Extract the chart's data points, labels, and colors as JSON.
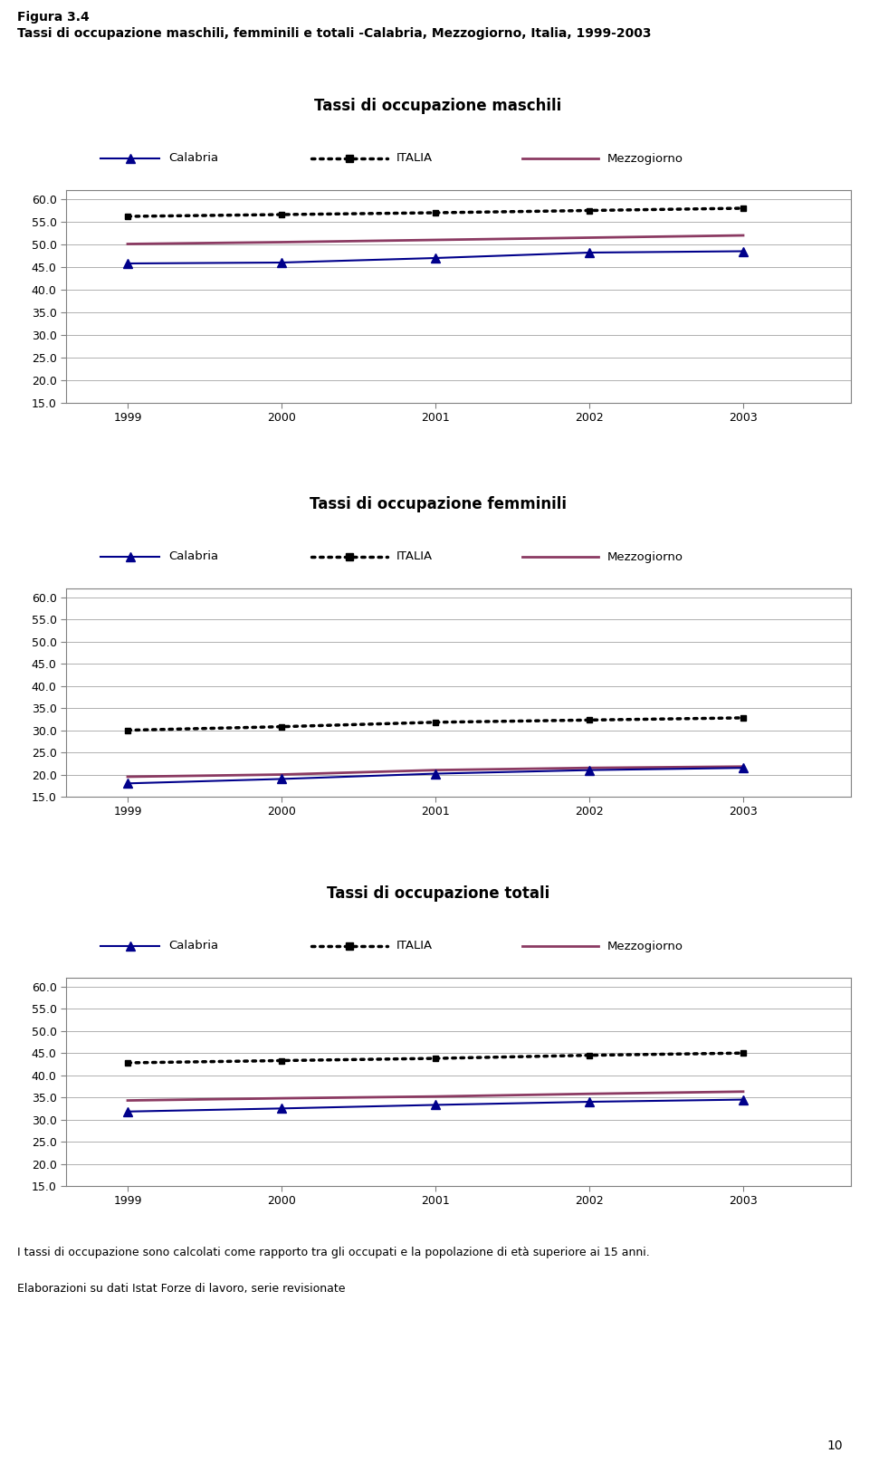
{
  "figure_title": "Figura 3.4",
  "figure_subtitle": "Tassi di occupazione maschili, femminili e totali -Calabria, Mezzogiorno, Italia, 1999-2003",
  "years": [
    1999,
    2000,
    2001,
    2002,
    2003
  ],
  "charts": [
    {
      "title": "Tassi di occupazione maschili",
      "ylim": [
        15.0,
        62.0
      ],
      "yticks": [
        15.0,
        20.0,
        25.0,
        30.0,
        35.0,
        40.0,
        45.0,
        50.0,
        55.0,
        60.0
      ],
      "calabria": [
        45.8,
        46.0,
        47.0,
        48.2,
        48.5
      ],
      "italia": [
        56.2,
        56.6,
        57.0,
        57.5,
        58.0
      ],
      "mezzogiorno": [
        50.1,
        50.5,
        51.0,
        51.5,
        52.0
      ]
    },
    {
      "title": "Tassi di occupazione femminili",
      "ylim": [
        15.0,
        62.0
      ],
      "yticks": [
        15.0,
        20.0,
        25.0,
        30.0,
        35.0,
        40.0,
        45.0,
        50.0,
        55.0,
        60.0
      ],
      "calabria": [
        18.0,
        19.0,
        20.2,
        21.0,
        21.5
      ],
      "italia": [
        30.0,
        30.8,
        31.8,
        32.3,
        32.8
      ],
      "mezzogiorno": [
        19.5,
        20.0,
        21.0,
        21.5,
        21.8
      ]
    },
    {
      "title": "Tassi di occupazione totali",
      "ylim": [
        15.0,
        62.0
      ],
      "yticks": [
        15.0,
        20.0,
        25.0,
        30.0,
        35.0,
        40.0,
        45.0,
        50.0,
        55.0,
        60.0
      ],
      "calabria": [
        31.8,
        32.5,
        33.3,
        34.0,
        34.5
      ],
      "italia": [
        42.8,
        43.3,
        43.8,
        44.5,
        45.0
      ],
      "mezzogiorno": [
        34.3,
        34.8,
        35.2,
        35.8,
        36.3
      ]
    }
  ],
  "colors": {
    "calabria": "#00008B",
    "italia": "#000000",
    "mezzogiorno": "#8B3A62"
  },
  "footer_text1": "I tassi di occupazione sono calcolati come rapporto tra gli occupati e la popolazione di età superiore ai 15 anni.",
  "footer_text2": "Elaborazioni su dati Istat Forze di lavoro, serie revisionate",
  "page_number": "10",
  "background_color": "#ffffff",
  "chart_bg": "#ffffff",
  "grid_color": "#b0b0b0",
  "border_color": "#808080"
}
